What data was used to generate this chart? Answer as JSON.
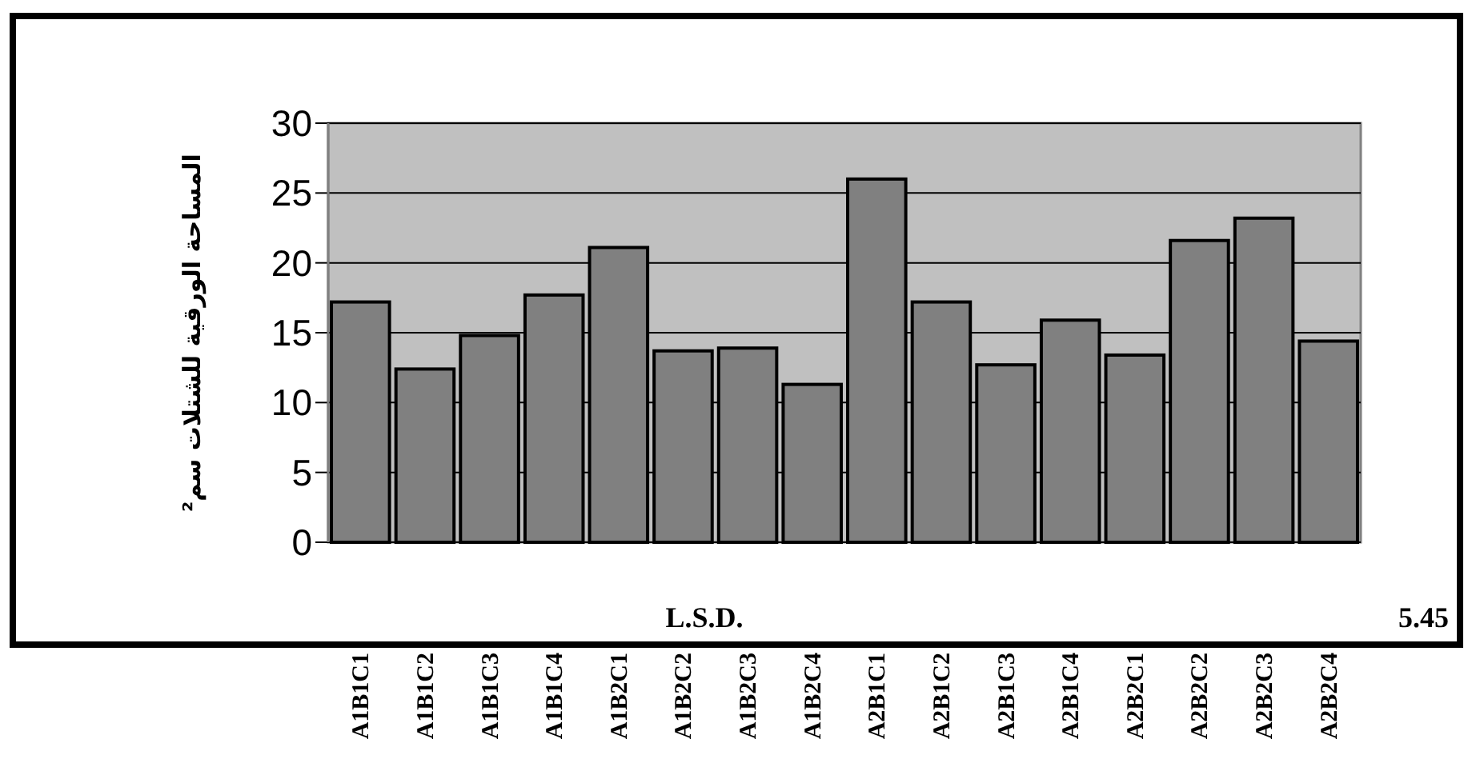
{
  "chart_data": {
    "type": "bar",
    "categories": [
      "A1B1C1",
      "A1B1C2",
      "A1B1C3",
      "A1B1C4",
      "A1B2C1",
      "A1B2C2",
      "A1B2C3",
      "A1B2C4",
      "A2B1C1",
      "A2B1C2",
      "A2B1C3",
      "A2B1C4",
      "A2B2C1",
      "A2B2C2",
      "A2B2C3",
      "A2B2C4"
    ],
    "values": [
      17.2,
      12.4,
      14.8,
      17.7,
      21.1,
      13.7,
      13.9,
      11.3,
      26.0,
      17.2,
      12.7,
      15.9,
      13.4,
      21.6,
      23.2,
      14.4
    ],
    "color": "#808080",
    "ylabel": "المساحة الورقية للشتلات سم²",
    "ylim": [
      0,
      30
    ],
    "yticks": [
      0,
      5,
      10,
      15,
      20,
      25,
      30
    ],
    "grid": "y",
    "annotations": [
      "L.S.D.",
      "5.45"
    ]
  }
}
